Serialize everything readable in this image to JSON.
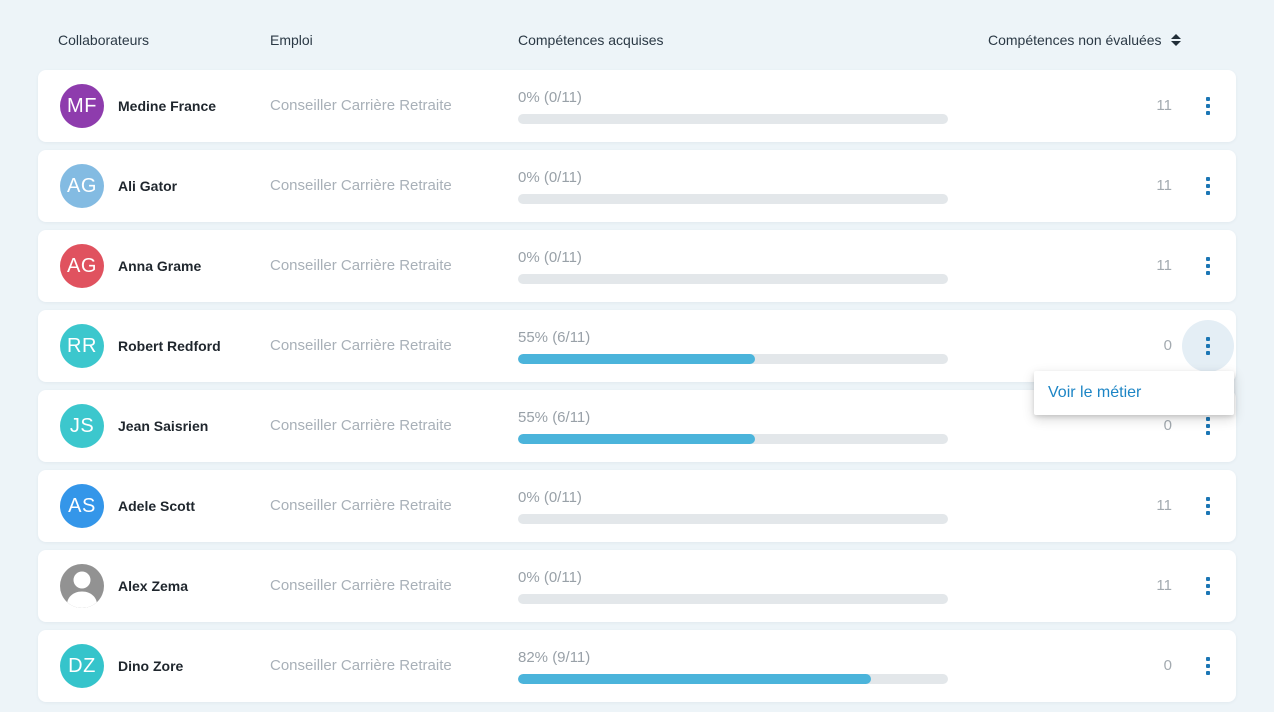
{
  "header": {
    "columns": [
      {
        "label": "Collaborateurs"
      },
      {
        "label": "Emploi"
      },
      {
        "label": "Compétences acquises"
      },
      {
        "label": "Compétences non évaluées",
        "sortable": true,
        "sort_icon": "sort-arrows"
      }
    ]
  },
  "colors": {
    "background": "#edf4f8",
    "card": "#ffffff",
    "progress_fill": "#4bb4db",
    "progress_track": "#e3e7ea",
    "kebab_blue": "#1b76b5",
    "menu_link_blue": "#1d85c5"
  },
  "rows": [
    {
      "avatar": {
        "initials": "MF",
        "color": "#8e3cad"
      },
      "name": "Medine France",
      "job": "Conseiller Carrière Retraite",
      "progress": {
        "label": "0% (0/11)",
        "percent": 0,
        "acquired": 0,
        "total": 11
      },
      "not_evaluated": "11"
    },
    {
      "avatar": {
        "initials": "AG",
        "color": "#83bbe2"
      },
      "name": "Ali Gator",
      "job": "Conseiller Carrière Retraite",
      "progress": {
        "label": "0% (0/11)",
        "percent": 0,
        "acquired": 0,
        "total": 11
      },
      "not_evaluated": "11"
    },
    {
      "avatar": {
        "initials": "AG",
        "color": "#e0525f"
      },
      "name": "Anna Grame",
      "job": "Conseiller Carrière Retraite",
      "progress": {
        "label": "0% (0/11)",
        "percent": 0,
        "acquired": 0,
        "total": 11
      },
      "not_evaluated": "11"
    },
    {
      "avatar": {
        "initials": "RR",
        "color": "#3cc7cd"
      },
      "name": "Robert Redford",
      "job": "Conseiller Carrière Retraite",
      "progress": {
        "label": "55% (6/11)",
        "percent": 55,
        "acquired": 6,
        "total": 11
      },
      "not_evaluated": "0",
      "menu_open": true
    },
    {
      "avatar": {
        "initials": "JS",
        "color": "#3cc7cd"
      },
      "name": "Jean Saisrien",
      "job": "Conseiller Carrière Retraite",
      "progress": {
        "label": "55% (6/11)",
        "percent": 55,
        "acquired": 6,
        "total": 11
      },
      "not_evaluated": "0"
    },
    {
      "avatar": {
        "initials": "AS",
        "color": "#3496e9"
      },
      "name": "Adele Scott",
      "job": "Conseiller Carrière Retraite",
      "progress": {
        "label": "0% (0/11)",
        "percent": 0,
        "acquired": 0,
        "total": 11
      },
      "not_evaluated": "11"
    },
    {
      "avatar": {
        "icon": "person-icon",
        "color": "#929292"
      },
      "name": "Alex Zema",
      "job": "Conseiller Carrière Retraite",
      "progress": {
        "label": "0% (0/11)",
        "percent": 0,
        "acquired": 0,
        "total": 11
      },
      "not_evaluated": "11"
    },
    {
      "avatar": {
        "initials": "DZ",
        "color": "#35c4cb"
      },
      "name": "Dino Zore",
      "job": "Conseiller Carrière Retraite",
      "progress": {
        "label": "82% (9/11)",
        "percent": 82,
        "acquired": 9,
        "total": 11
      },
      "not_evaluated": "0"
    }
  ],
  "menu": {
    "items": [
      {
        "label": "Voir le métier"
      }
    ]
  }
}
